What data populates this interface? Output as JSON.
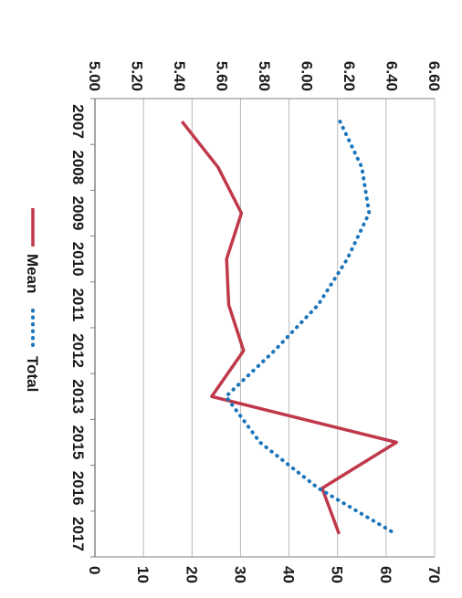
{
  "chart_data": {
    "type": "line",
    "rotated": "90deg-clockwise",
    "categories": [
      "2007",
      "2008",
      "2009",
      "2010",
      "2011",
      "2012",
      "2013",
      "2015",
      "2016",
      "2017"
    ],
    "series": [
      {
        "name": "Mean",
        "axis": "left",
        "style": "solid",
        "color": "#c0394b",
        "values": [
          5.41,
          5.58,
          5.69,
          5.62,
          5.63,
          5.7,
          5.55,
          6.42,
          6.07,
          6.15
        ]
      },
      {
        "name": "Total",
        "axis": "right",
        "style": "dotted",
        "color": "#1b75bb",
        "values": [
          50.5,
          55,
          56.5,
          52,
          46,
          37,
          27,
          34,
          46,
          62
        ]
      }
    ],
    "y_left": {
      "ticks": [
        "5.00",
        "5.20",
        "5.40",
        "5.60",
        "5.80",
        "6.00",
        "6.20",
        "6.40",
        "6.60"
      ],
      "range": [
        5.0,
        6.6
      ]
    },
    "y_right": {
      "ticks": [
        "0",
        "10",
        "20",
        "30",
        "40",
        "50",
        "60",
        "70"
      ],
      "range": [
        0,
        70
      ]
    },
    "grid": true,
    "legend_position": "bottom",
    "title": "",
    "xlabel": "",
    "ylabel": ""
  }
}
